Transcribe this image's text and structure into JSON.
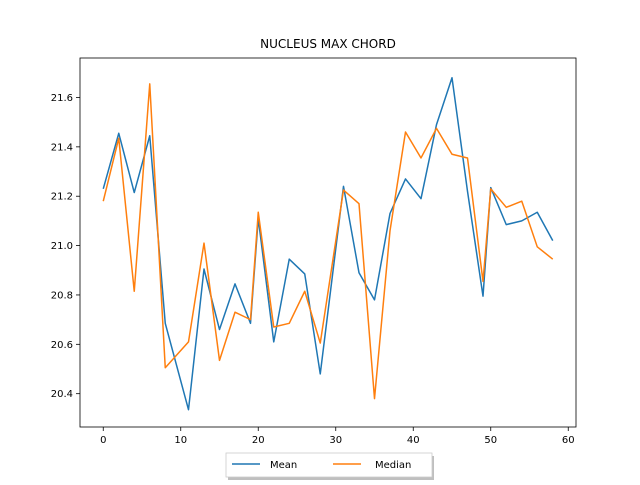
{
  "chart_data": {
    "type": "line",
    "title": "NUCLEUS MAX CHORD",
    "xlabel": "",
    "ylabel": "",
    "xlim": [
      -3,
      61
    ],
    "ylim": [
      20.265,
      21.76
    ],
    "xticks": [
      0,
      10,
      20,
      30,
      40,
      50,
      60
    ],
    "yticks": [
      20.4,
      20.6,
      20.8,
      21.0,
      21.2,
      21.4,
      21.6
    ],
    "grid": false,
    "legend_position": "bottom-center",
    "x": [
      0,
      2,
      4,
      6,
      8,
      11,
      13,
      15,
      17,
      19,
      20,
      22,
      24,
      26,
      28,
      31,
      33,
      35,
      37,
      39,
      41,
      43,
      45,
      47,
      49,
      50,
      52,
      54,
      56,
      58
    ],
    "series": [
      {
        "name": "Mean",
        "color": "#1f77b4",
        "values": [
          21.23,
          21.455,
          21.215,
          21.445,
          20.685,
          20.335,
          20.905,
          20.66,
          20.845,
          20.685,
          21.11,
          20.61,
          20.945,
          20.885,
          20.48,
          21.24,
          20.89,
          20.78,
          21.13,
          21.27,
          21.19,
          21.49,
          21.68,
          21.22,
          20.795,
          21.235,
          21.085,
          21.1,
          21.135,
          21.02
        ]
      },
      {
        "name": "Median",
        "color": "#ff7f0e",
        "values": [
          21.18,
          21.435,
          20.815,
          21.655,
          20.505,
          20.61,
          21.01,
          20.535,
          20.73,
          20.7,
          21.135,
          20.67,
          20.685,
          20.815,
          20.605,
          21.225,
          21.17,
          20.38,
          21.06,
          21.46,
          21.355,
          21.475,
          21.37,
          21.355,
          20.855,
          21.23,
          21.155,
          21.18,
          20.995,
          20.945
        ]
      }
    ]
  }
}
